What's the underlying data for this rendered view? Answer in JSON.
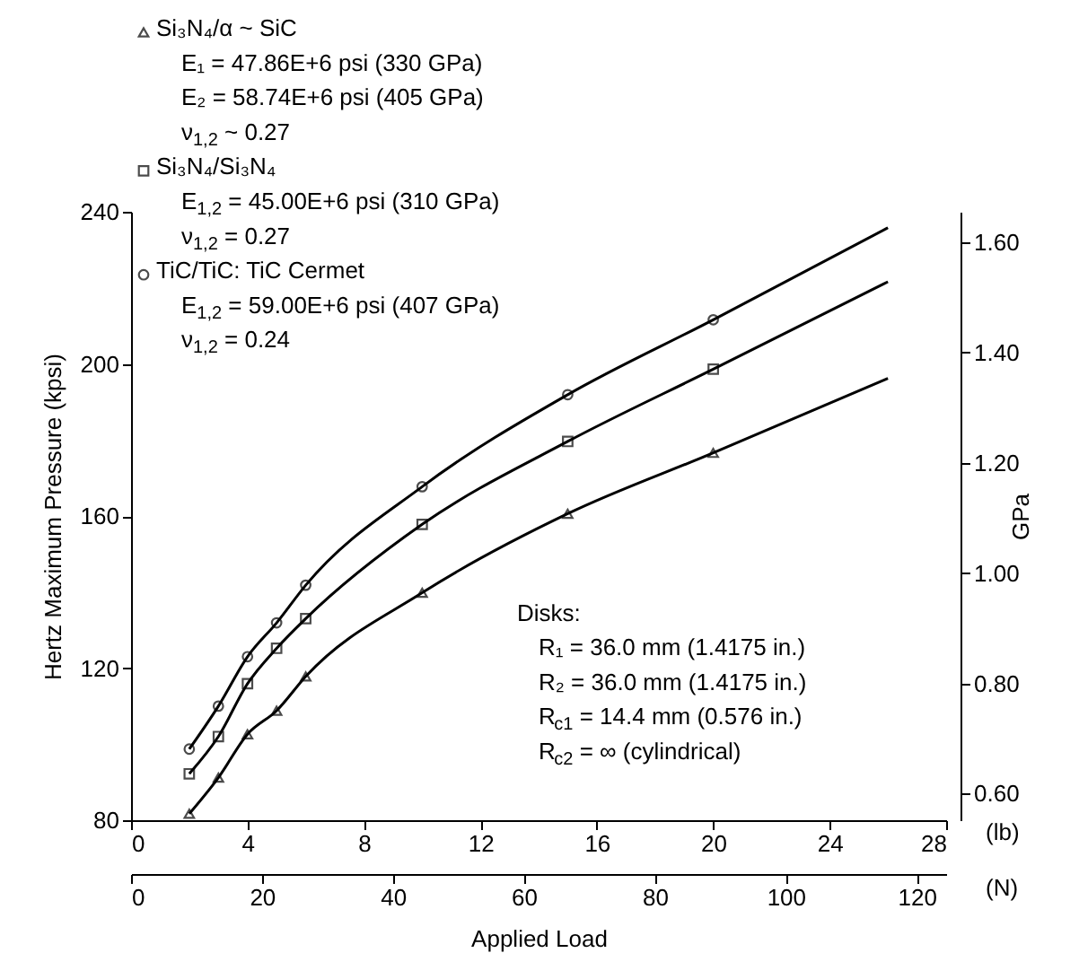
{
  "chart_data": {
    "type": "scatter",
    "xlabel": "Applied Load",
    "ylabel": "Hertz Maximum Pressure (kpsi)",
    "y2label": "GPa",
    "xlim": [
      0,
      28
    ],
    "xticks": [
      0,
      4,
      8,
      12,
      16,
      20,
      24,
      28
    ],
    "x2lim": [
      0,
      124.5
    ],
    "x2ticks": [
      0,
      20,
      40,
      60,
      80,
      100,
      120
    ],
    "ylim": [
      80,
      240
    ],
    "yticks": [
      80,
      120,
      160,
      200,
      240
    ],
    "y2lim": [
      0.552,
      1.655
    ],
    "y2ticks": [
      {
        "value": 0.6,
        "label": "0.60"
      },
      {
        "value": 0.8,
        "label": "0.80"
      },
      {
        "value": 1.0,
        "label": "1.00"
      },
      {
        "value": 1.2,
        "label": "1.20"
      },
      {
        "value": 1.4,
        "label": "1.40"
      },
      {
        "value": 1.6,
        "label": "1.60"
      }
    ],
    "grid": false,
    "legend": "top left",
    "series": [
      {
        "name": "Si₃N₄/α ~ SiC",
        "marker": "triangle",
        "color": "#000000",
        "x": [
          2,
          3,
          4,
          5,
          6,
          10,
          15,
          20
        ],
        "values": [
          81.7,
          91.2,
          102.6,
          108.8,
          117.8,
          139.8,
          160.6,
          176.6
        ]
      },
      {
        "name": "Si₃N₄/Si₃N₄",
        "marker": "square",
        "color": "#000000",
        "x": [
          2,
          3,
          4,
          5,
          6,
          10,
          15,
          20
        ],
        "values": [
          92.2,
          102,
          115.9,
          125.2,
          133,
          157.8,
          179.6,
          198.6
        ]
      },
      {
        "name": "TiC/TiC: TiC Cermet",
        "marker": "circle",
        "color": "#000000",
        "x": [
          2,
          3,
          4,
          5,
          6,
          10,
          15,
          20
        ],
        "values": [
          98.7,
          110,
          123,
          131.9,
          141.8,
          167.7,
          191.9,
          211.6
        ]
      },
      {
        "type": "line",
        "marker": "none",
        "line_style": "solid",
        "color": "#000000",
        "x": [
          2,
          3,
          4,
          5,
          6,
          10,
          15,
          20,
          26
        ],
        "values": [
          81.7,
          91.2,
          102.6,
          108.8,
          117.8,
          139.8,
          160.6,
          176.6,
          196.2
        ]
      },
      {
        "type": "line",
        "marker": "none",
        "line_style": "solid",
        "color": "#000000",
        "x": [
          2,
          3,
          4,
          5,
          6,
          10,
          15,
          20,
          26
        ],
        "values": [
          92.2,
          102,
          115.9,
          125.2,
          133,
          157.8,
          179.6,
          198.6,
          221.6
        ]
      },
      {
        "type": "line",
        "marker": "none",
        "line_style": "solid",
        "color": "#000000",
        "x": [
          2,
          3,
          4,
          5,
          6,
          10,
          15,
          20,
          26
        ],
        "values": [
          98.7,
          110,
          123,
          131.9,
          141.8,
          167.7,
          191.9,
          211.6,
          235.8
        ]
      }
    ],
    "annotations": [
      "E₁ = 47.86E+6 psi (330 GPa)\nE₂ = 58.74E+6 psi (405 GPa)\nν$_{1,2}$ ~ 0.27",
      "E$_{1,2}$ = 45.00E+6 psi (310 GPa)\nν$_{1,2}$ = 0.27",
      "E$_{1,2}$ = 59.00E+6 psi (407 GPa)\nν$_{1,2}$ = 0.24",
      "(lb)",
      "(N)",
      "Disks:",
      "R₁ = 36.0 mm (1.4175 in.)\nR₂ = 36.0 mm (1.4175 in.)\nR$_{c1}$ = 14.4 mm (0.576 in.)\nR$_{c2}$ = ∞ (cylindrical)"
    ]
  }
}
